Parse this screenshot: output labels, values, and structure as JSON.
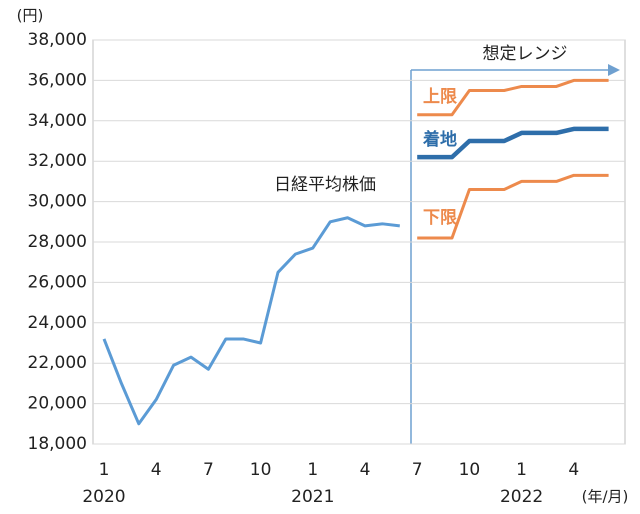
{
  "chart_data": {
    "type": "line",
    "y_unit": "(円)",
    "x_unit": "(年/月)",
    "range_label": "想定レンジ",
    "categories": [
      "1",
      null,
      null,
      "4",
      null,
      null,
      "7",
      null,
      null,
      "10",
      null,
      null,
      "1",
      null,
      null,
      "4",
      null,
      null,
      "7",
      null,
      null,
      "10",
      null,
      null,
      "1",
      null,
      null,
      "4",
      null,
      null
    ],
    "years": [
      {
        "index": 0,
        "label": "2020"
      },
      {
        "index": 12,
        "label": "2021"
      },
      {
        "index": 24,
        "label": "2022"
      }
    ],
    "series": [
      {
        "name": "日経平均株価",
        "color": "#5b9bd5",
        "values": [
          23200,
          21000,
          19000,
          20200,
          21900,
          22300,
          21700,
          23200,
          23200,
          23000,
          26500,
          27400,
          27700,
          29000,
          29200,
          28800,
          28900,
          28800,
          null,
          null,
          null,
          null,
          null,
          null,
          null,
          null,
          null,
          null,
          null,
          null
        ]
      },
      {
        "name": "上限",
        "color": "#ed8a4c",
        "values": [
          null,
          null,
          null,
          null,
          null,
          null,
          null,
          null,
          null,
          null,
          null,
          null,
          null,
          null,
          null,
          null,
          null,
          null,
          34300,
          34300,
          34300,
          35500,
          35500,
          35500,
          35700,
          35700,
          35700,
          36000,
          36000,
          36000
        ]
      },
      {
        "name": "着地",
        "color": "#2e6eaa",
        "values": [
          null,
          null,
          null,
          null,
          null,
          null,
          null,
          null,
          null,
          null,
          null,
          null,
          null,
          null,
          null,
          null,
          null,
          null,
          32200,
          32200,
          32200,
          33000,
          33000,
          33000,
          33400,
          33400,
          33400,
          33600,
          33600,
          33600
        ]
      },
      {
        "name": "下限",
        "color": "#ed8a4c",
        "values": [
          null,
          null,
          null,
          null,
          null,
          null,
          null,
          null,
          null,
          null,
          null,
          null,
          null,
          null,
          null,
          null,
          null,
          null,
          28200,
          28200,
          28200,
          30600,
          30600,
          30600,
          31000,
          31000,
          31000,
          31300,
          31300,
          31300
        ]
      }
    ],
    "ylim": [
      18000,
      38000
    ],
    "yticks": [
      {
        "value": 18000,
        "label": "18,000"
      },
      {
        "value": 20000,
        "label": "20,000"
      },
      {
        "value": 22000,
        "label": "22,000"
      },
      {
        "value": 24000,
        "label": "24,000"
      },
      {
        "value": 26000,
        "label": "26,000"
      },
      {
        "value": 28000,
        "label": "28,000"
      },
      {
        "value": 30000,
        "label": "30,000"
      },
      {
        "value": 32000,
        "label": "32,000"
      },
      {
        "value": 34000,
        "label": "34,000"
      },
      {
        "value": 36000,
        "label": "36,000"
      },
      {
        "value": 38000,
        "label": "38,000"
      }
    ],
    "grid": true
  }
}
